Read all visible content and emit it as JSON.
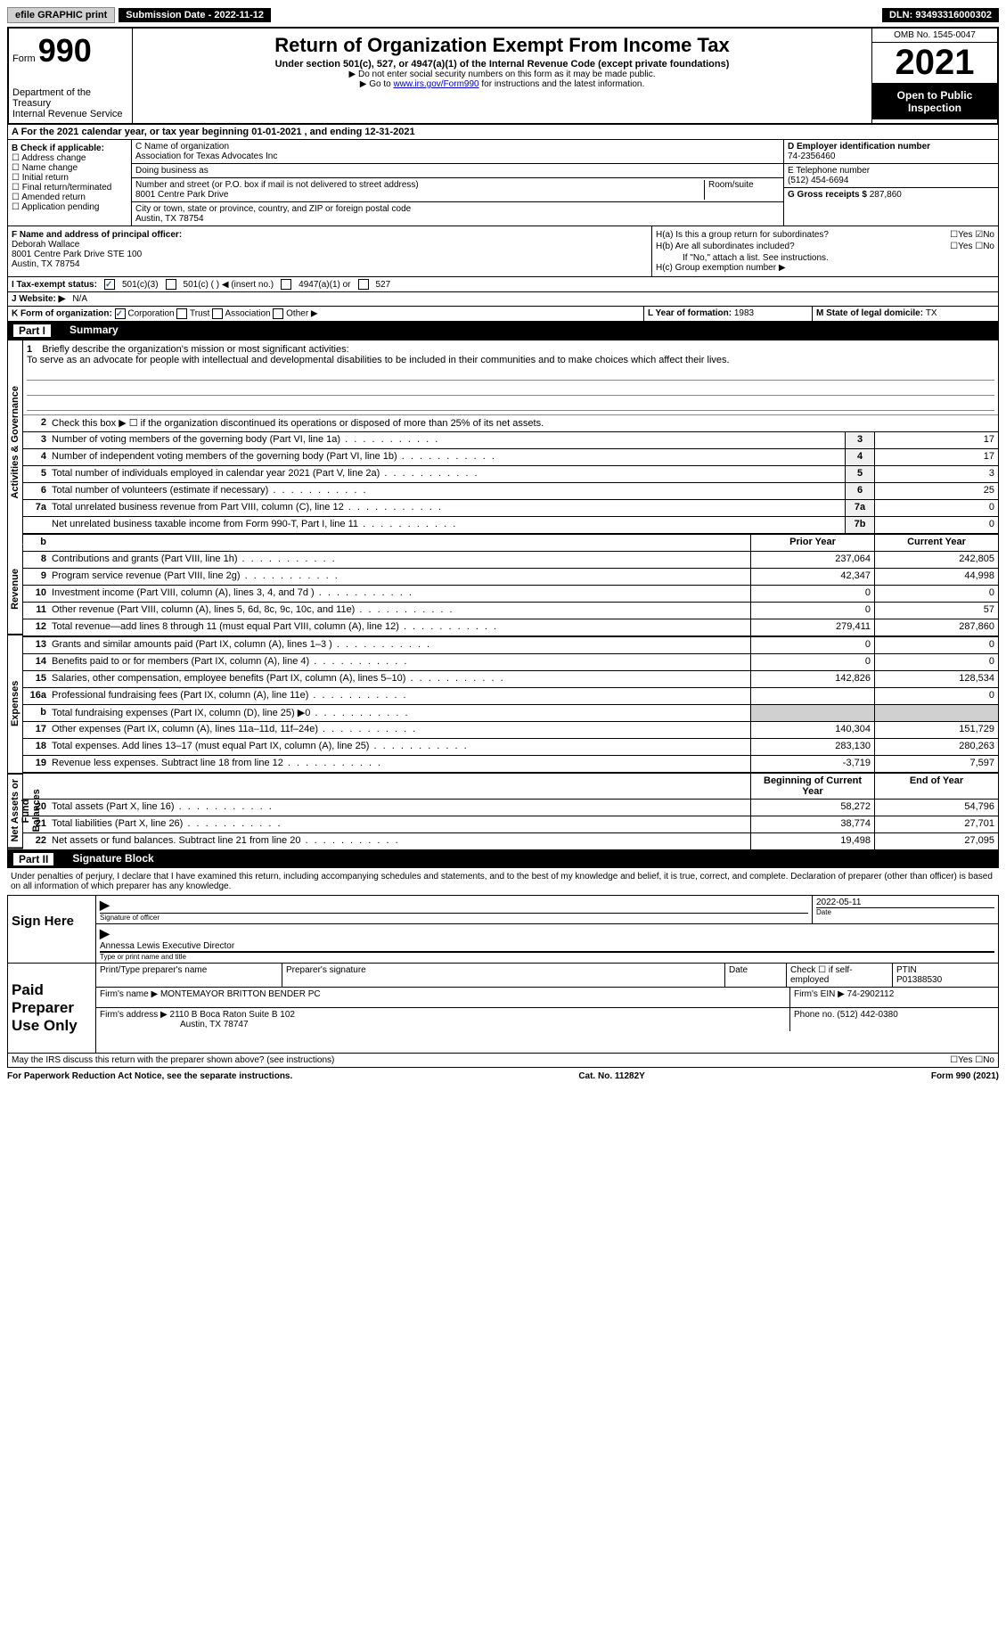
{
  "topbar": {
    "efile": "efile GRAPHIC print",
    "subdate_label": "Submission Date - ",
    "subdate": "2022-11-12",
    "dln_label": "DLN: ",
    "dln": "93493316000302"
  },
  "header": {
    "form_label": "Form",
    "form_num": "990",
    "dept": "Department of the Treasury",
    "irs": "Internal Revenue Service",
    "title": "Return of Organization Exempt From Income Tax",
    "subtitle": "Under section 501(c), 527, or 4947(a)(1) of the Internal Revenue Code (except private foundations)",
    "note1": "▶ Do not enter social security numbers on this form as it may be made public.",
    "note2_pre": "▶ Go to ",
    "note2_link": "www.irs.gov/Form990",
    "note2_post": " for instructions and the latest information.",
    "omb": "OMB No. 1545-0047",
    "year": "2021",
    "inspection": "Open to Public Inspection"
  },
  "rowA": {
    "text_pre": "A For the 2021 calendar year, or tax year beginning ",
    "begin": "01-01-2021",
    "mid": " , and ending ",
    "end": "12-31-2021"
  },
  "secB": {
    "label": "B Check if applicable:",
    "opts": [
      "Address change",
      "Name change",
      "Initial return",
      "Final return/terminated",
      "Amended return",
      "Application pending"
    ]
  },
  "secC": {
    "name_label": "C Name of organization",
    "name": "Association for Texas Advocates Inc",
    "dba_label": "Doing business as",
    "dba": "",
    "addr_label": "Number and street (or P.O. box if mail is not delivered to street address)",
    "room_label": "Room/suite",
    "addr": "8001 Centre Park Drive",
    "city_label": "City or town, state or province, country, and ZIP or foreign postal code",
    "city": "Austin, TX  78754"
  },
  "secD": {
    "label": "D Employer identification number",
    "ein": "74-2356460",
    "tel_label": "E Telephone number",
    "tel": "(512) 454-6694",
    "gross_label": "G Gross receipts $ ",
    "gross": "287,860"
  },
  "secF": {
    "label": "F Name and address of principal officer:",
    "name": "Deborah Wallace",
    "addr1": "8001 Centre Park Drive STE 100",
    "addr2": "Austin, TX  78754"
  },
  "secH": {
    "ha": "H(a)  Is this a group return for subordinates?",
    "hb": "H(b)  Are all subordinates included?",
    "hb_note": "If \"No,\" attach a list. See instructions.",
    "hc": "H(c)  Group exemption number ▶",
    "yes": "Yes",
    "no": "No"
  },
  "secI": {
    "label": "I    Tax-exempt status:",
    "opt1": "501(c)(3)",
    "opt2": "501(c) (  ) ◀ (insert no.)",
    "opt3": "4947(a)(1) or",
    "opt4": "527"
  },
  "secJ": {
    "label": "J   Website: ▶",
    "val": "N/A"
  },
  "secK": {
    "label": "K Form of organization:",
    "opts": [
      "Corporation",
      "Trust",
      "Association",
      "Other ▶"
    ],
    "L": "L Year of formation: ",
    "Lval": "1983",
    "M": "M State of legal domicile: ",
    "Mval": "TX"
  },
  "part1": {
    "num": "Part I",
    "title": "Summary"
  },
  "mission": {
    "num": "1",
    "label": "Briefly describe the organization's mission or most significant activities:",
    "text": "To serve as an advocate for people with intellectual and developmental disabilities to be included in their communities and to make choices which affect their lives."
  },
  "line2": {
    "num": "2",
    "text": "Check this box ▶ ☐  if the organization discontinued its operations or disposed of more than 25% of its net assets."
  },
  "lines_ag": [
    {
      "n": "3",
      "d": "Number of voting members of the governing body (Part VI, line 1a)",
      "box": "3",
      "v": "17"
    },
    {
      "n": "4",
      "d": "Number of independent voting members of the governing body (Part VI, line 1b)",
      "box": "4",
      "v": "17"
    },
    {
      "n": "5",
      "d": "Total number of individuals employed in calendar year 2021 (Part V, line 2a)",
      "box": "5",
      "v": "3"
    },
    {
      "n": "6",
      "d": "Total number of volunteers (estimate if necessary)",
      "box": "6",
      "v": "25"
    },
    {
      "n": "7a",
      "d": "Total unrelated business revenue from Part VIII, column (C), line 12",
      "box": "7a",
      "v": "0"
    },
    {
      "n": "",
      "d": "Net unrelated business taxable income from Form 990-T, Part I, line 11",
      "box": "7b",
      "v": "0"
    }
  ],
  "vlabels": {
    "ag": "Activities & Governance",
    "rev": "Revenue",
    "exp": "Expenses",
    "na": "Net Assets or Fund Balances"
  },
  "colheads": {
    "prior": "Prior Year",
    "current": "Current Year",
    "begin": "Beginning of Current Year",
    "end": "End of Year"
  },
  "lines_rev": [
    {
      "n": "8",
      "d": "Contributions and grants (Part VIII, line 1h)",
      "p": "237,064",
      "c": "242,805"
    },
    {
      "n": "9",
      "d": "Program service revenue (Part VIII, line 2g)",
      "p": "42,347",
      "c": "44,998"
    },
    {
      "n": "10",
      "d": "Investment income (Part VIII, column (A), lines 3, 4, and 7d )",
      "p": "0",
      "c": "0"
    },
    {
      "n": "11",
      "d": "Other revenue (Part VIII, column (A), lines 5, 6d, 8c, 9c, 10c, and 11e)",
      "p": "0",
      "c": "57"
    },
    {
      "n": "12",
      "d": "Total revenue—add lines 8 through 11 (must equal Part VIII, column (A), line 12)",
      "p": "279,411",
      "c": "287,860"
    }
  ],
  "lines_exp": [
    {
      "n": "13",
      "d": "Grants and similar amounts paid (Part IX, column (A), lines 1–3 )",
      "p": "0",
      "c": "0"
    },
    {
      "n": "14",
      "d": "Benefits paid to or for members (Part IX, column (A), line 4)",
      "p": "0",
      "c": "0"
    },
    {
      "n": "15",
      "d": "Salaries, other compensation, employee benefits (Part IX, column (A), lines 5–10)",
      "p": "142,826",
      "c": "128,534"
    },
    {
      "n": "16a",
      "d": "Professional fundraising fees (Part IX, column (A), line 11e)",
      "p": "",
      "c": "0"
    },
    {
      "n": "b",
      "d": "Total fundraising expenses (Part IX, column (D), line 25) ▶0",
      "p": "SHADE",
      "c": "SHADE"
    },
    {
      "n": "17",
      "d": "Other expenses (Part IX, column (A), lines 11a–11d, 11f–24e)",
      "p": "140,304",
      "c": "151,729"
    },
    {
      "n": "18",
      "d": "Total expenses. Add lines 13–17 (must equal Part IX, column (A), line 25)",
      "p": "283,130",
      "c": "280,263"
    },
    {
      "n": "19",
      "d": "Revenue less expenses. Subtract line 18 from line 12",
      "p": "-3,719",
      "c": "7,597"
    }
  ],
  "lines_na": [
    {
      "n": "20",
      "d": "Total assets (Part X, line 16)",
      "p": "58,272",
      "c": "54,796"
    },
    {
      "n": "21",
      "d": "Total liabilities (Part X, line 26)",
      "p": "38,774",
      "c": "27,701"
    },
    {
      "n": "22",
      "d": "Net assets or fund balances. Subtract line 21 from line 20",
      "p": "19,498",
      "c": "27,095"
    }
  ],
  "part2": {
    "num": "Part II",
    "title": "Signature Block"
  },
  "sig": {
    "decl": "Under penalties of perjury, I declare that I have examined this return, including accompanying schedules and statements, and to the best of my knowledge and belief, it is true, correct, and complete. Declaration of preparer (other than officer) is based on all information of which preparer has any knowledge.",
    "sign_here": "Sign Here",
    "sig_officer": "Signature of officer",
    "date_label": "Date",
    "date": "2022-05-11",
    "name": "Annessa Lewis  Executive Director",
    "name_label": "Type or print name and title"
  },
  "prep": {
    "title": "Paid Preparer Use Only",
    "h1": "Print/Type preparer's name",
    "h2": "Preparer's signature",
    "h3": "Date",
    "h4_pre": "Check ☐ if self-employed",
    "h5": "PTIN",
    "ptin": "P01388530",
    "firm_label": "Firm's name    ▶ ",
    "firm": "MONTEMAYOR BRITTON BENDER PC",
    "ein_label": "Firm's EIN ▶ ",
    "ein": "74-2902112",
    "addr_label": "Firm's address ▶ ",
    "addr1": "2110 B Boca Raton Suite B 102",
    "addr2": "Austin, TX  78747",
    "phone_label": "Phone no. ",
    "phone": "(512) 442-0380"
  },
  "may_irs": "May the IRS discuss this return with the preparer shown above? (see instructions)",
  "footer": {
    "left": "For Paperwork Reduction Act Notice, see the separate instructions.",
    "mid": "Cat. No. 11282Y",
    "right": "Form 990 (2021)"
  }
}
